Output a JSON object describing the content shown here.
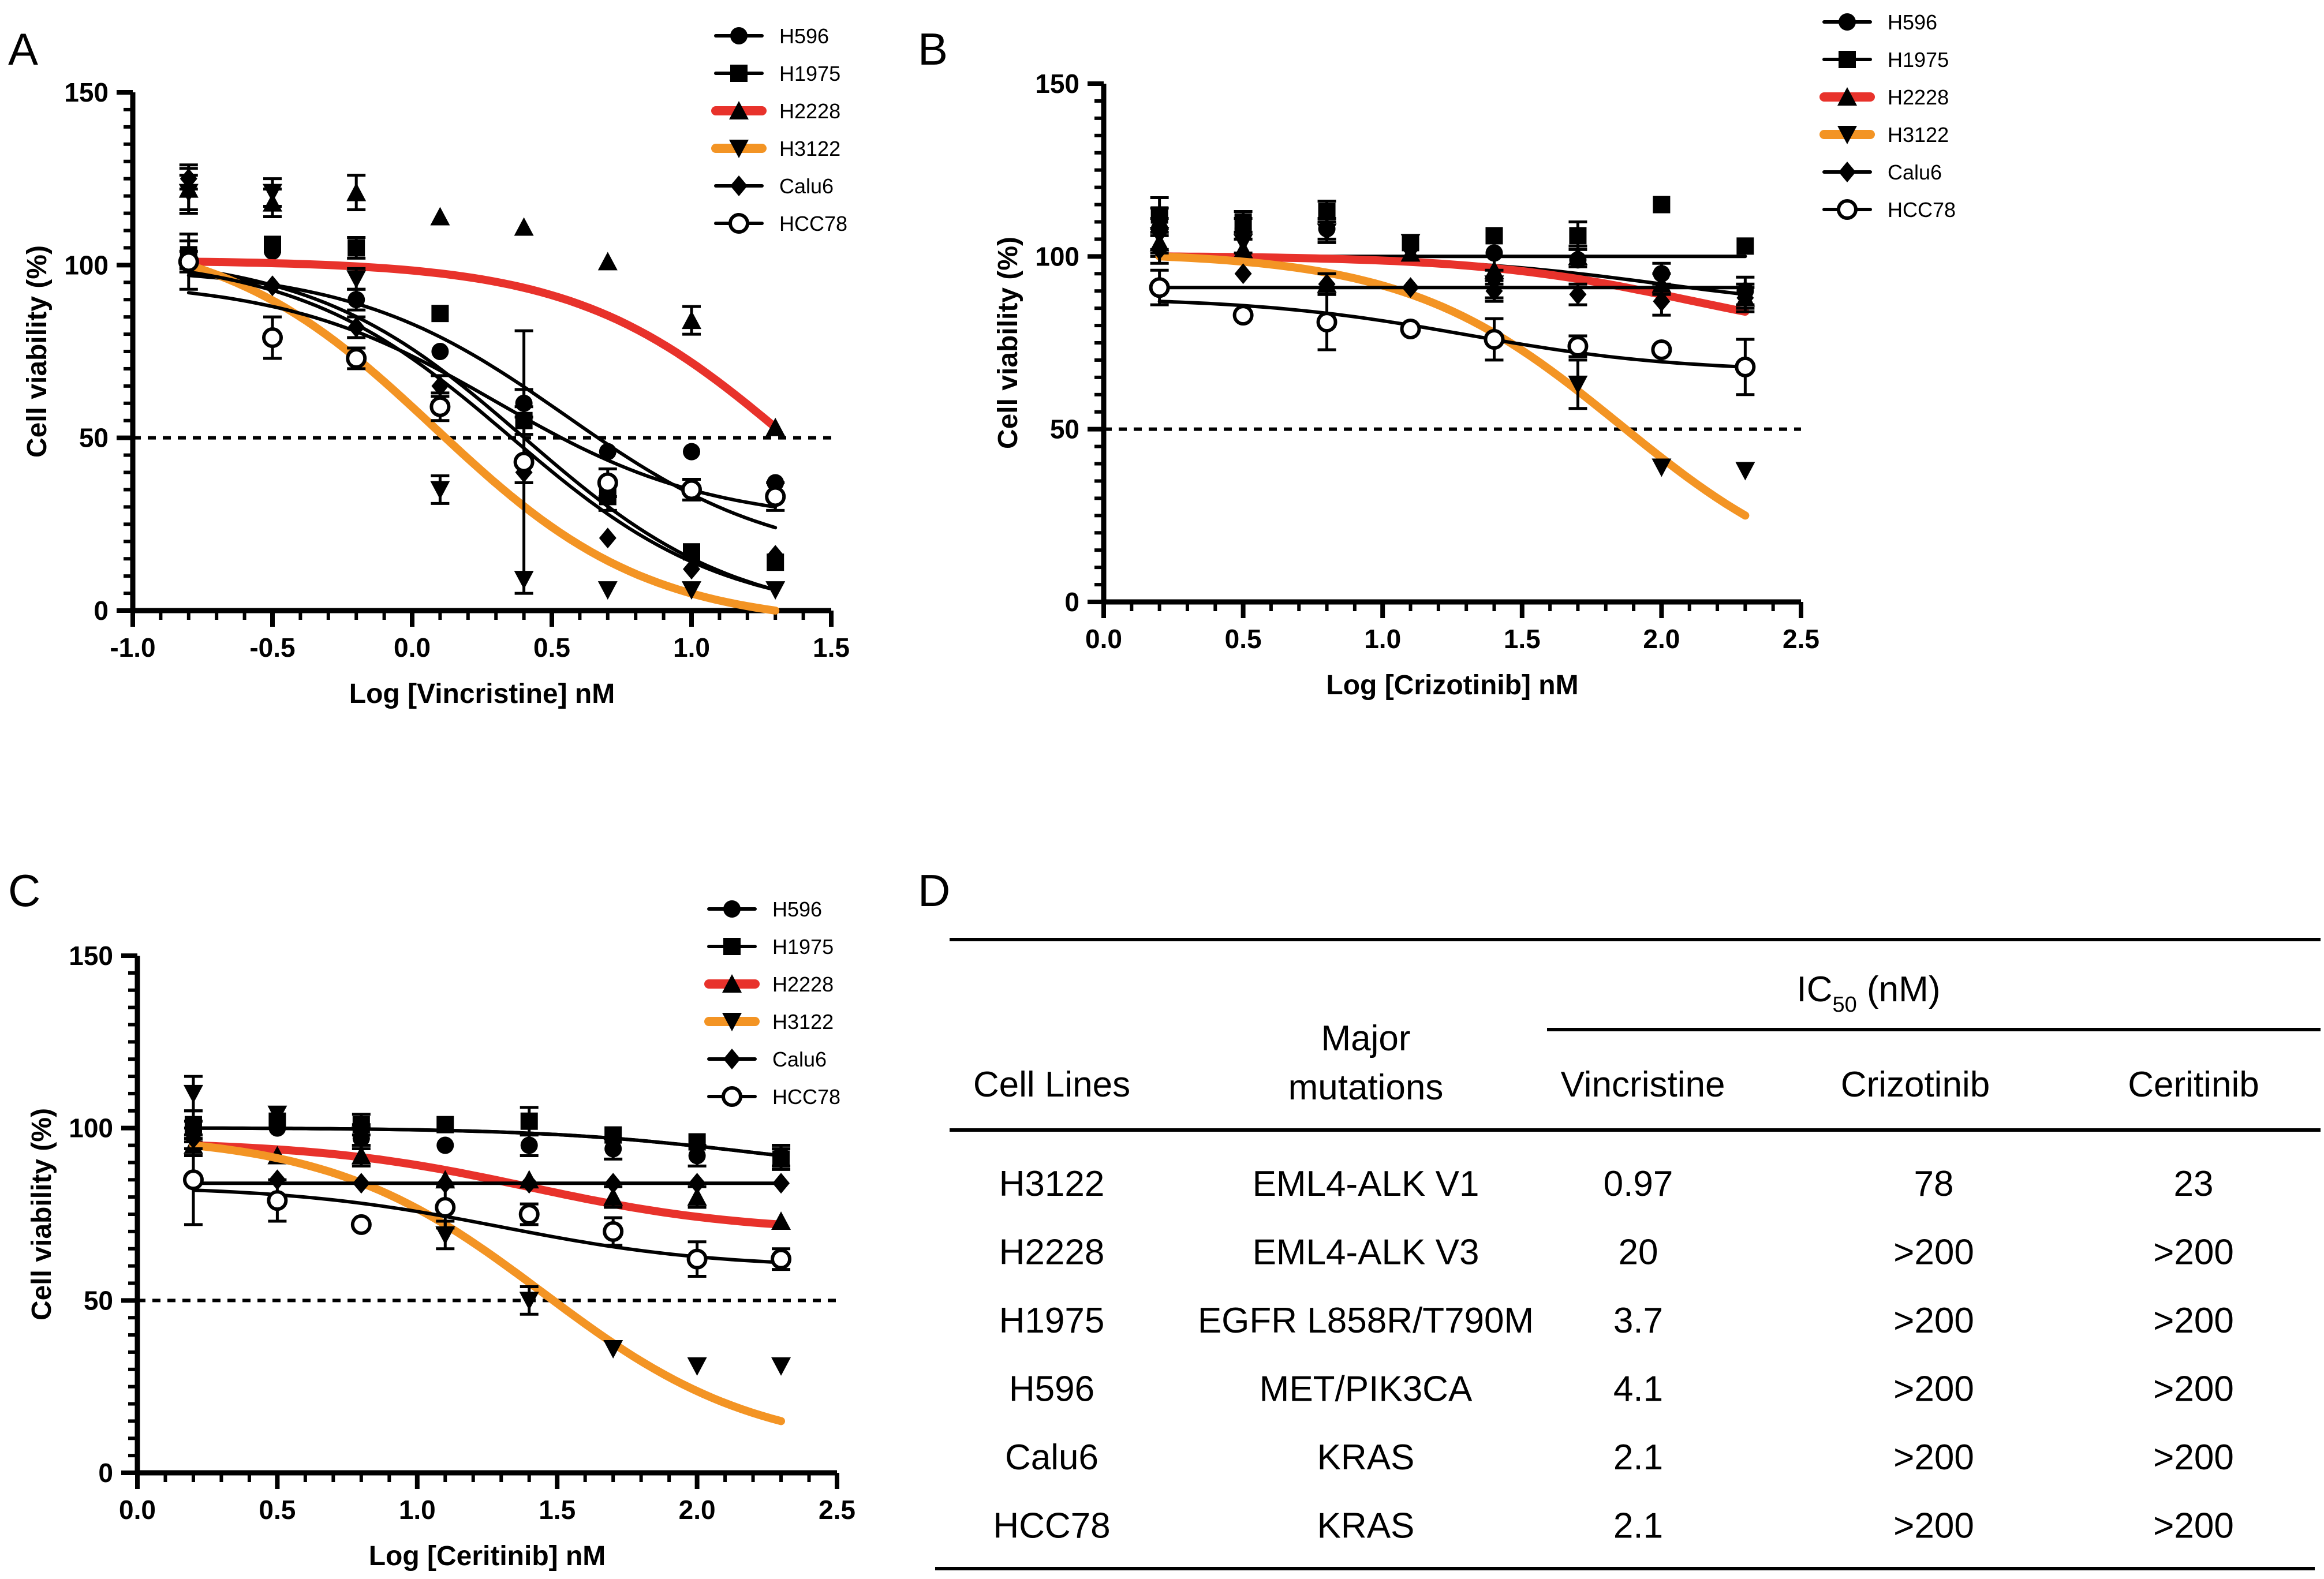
{
  "panel_labels": [
    "A",
    "B",
    "C",
    "D"
  ],
  "legend_labels": [
    "H596",
    "H1975",
    "H2228",
    "H3122",
    "Calu6",
    "HCC78"
  ],
  "colors": {
    "h2228": "#e8322b",
    "h3122": "#f39424",
    "black": "#000000"
  },
  "chart_data": [
    {
      "panel": "A",
      "type": "scatter",
      "xlabel": "Log [Vincristine] nM",
      "ylabel": "Cell viability (%)",
      "xlim": [
        -1.0,
        1.5
      ],
      "ylim": [
        0,
        150
      ],
      "xticks": [
        "-1.0",
        "-0.5",
        "0.0",
        "0.5",
        "1.0",
        "1.5"
      ],
      "yticks": [
        "0",
        "50",
        "100",
        "150"
      ],
      "reference_line": 50,
      "x": [
        -0.8,
        -0.5,
        -0.2,
        0.1,
        0.4,
        0.7,
        1.0,
        1.3
      ],
      "series": [
        {
          "name": "H596",
          "marker": "circle",
          "values": [
            101,
            104,
            90,
            75,
            60,
            46,
            46,
            37
          ],
          "err": [
            3,
            2,
            3,
            2,
            4,
            2,
            2,
            2
          ],
          "fit": [
            -0.8,
            97,
            1.3,
            24
          ]
        },
        {
          "name": "H1975",
          "marker": "square",
          "values": [
            103,
            106,
            105,
            86,
            55,
            33,
            17,
            14
          ],
          "err": [
            4,
            2,
            3,
            2,
            4,
            4,
            2,
            2
          ],
          "fit": [
            -0.8,
            99,
            1.3,
            6
          ]
        },
        {
          "name": "H2228",
          "marker": "triangle-up",
          "values": [
            122,
            118,
            121,
            114,
            111,
            101,
            84,
            53
          ],
          "err": [
            7,
            4,
            5,
            2,
            2,
            2,
            4,
            2
          ],
          "fit": [
            -0.8,
            101,
            1.3,
            53
          ]
        },
        {
          "name": "H3122",
          "marker": "triangle-down",
          "values": [
            121,
            121,
            96,
            35,
            9,
            6,
            6,
            6
          ],
          "err": [
            5,
            4,
            3,
            4,
            2,
            2,
            2,
            2
          ],
          "fit": [
            -0.8,
            100,
            1.3,
            0
          ]
        },
        {
          "name": "Calu6",
          "marker": "diamond",
          "values": [
            125,
            94,
            82,
            65,
            40,
            21,
            12,
            16
          ],
          "err": [
            3,
            2,
            3,
            3,
            3,
            2,
            2,
            2
          ],
          "fit": [
            -0.8,
            98,
            1.3,
            6
          ]
        },
        {
          "name": "HCC78",
          "marker": "circle-open",
          "values": [
            101,
            79,
            73,
            59,
            43,
            37,
            35,
            33
          ],
          "err": [
            8,
            6,
            3,
            4,
            38,
            4,
            3,
            4
          ],
          "fit": [
            -0.8,
            92,
            1.3,
            30
          ]
        }
      ]
    },
    {
      "panel": "B",
      "type": "scatter",
      "xlabel": "Log [Crizotinib] nM",
      "ylabel": "Cell viability (%)",
      "xlim": [
        0.0,
        2.5
      ],
      "ylim": [
        0,
        150
      ],
      "xticks": [
        "0.0",
        "0.5",
        "1.0",
        "1.5",
        "2.0",
        "2.5"
      ],
      "yticks": [
        "0",
        "50",
        "100",
        "150"
      ],
      "reference_line": 50,
      "x": [
        0.2,
        0.5,
        0.8,
        1.1,
        1.4,
        1.7,
        2.0,
        2.3
      ],
      "series": [
        {
          "name": "H596",
          "marker": "circle",
          "values": [
            108,
            108,
            108,
            103,
            101,
            99,
            95,
            90
          ],
          "err": [
            6,
            3,
            3,
            2,
            2,
            2,
            3,
            4
          ],
          "fit": [
            0.2,
            100,
            2.3,
            89
          ]
        },
        {
          "name": "H1975",
          "marker": "square",
          "values": [
            112,
            110,
            113,
            104,
            106,
            106,
            115,
            103
          ],
          "err": [
            5,
            3,
            3,
            2,
            2,
            4,
            2,
            2
          ],
          "fit": [
            0.2,
            100,
            2.3,
            100
          ]
        },
        {
          "name": "H2228",
          "marker": "triangle-up",
          "values": [
            104,
            102,
            92,
            101,
            96,
            100,
            92,
            88
          ],
          "err": [
            4,
            3,
            3,
            2,
            4,
            3,
            3,
            3
          ],
          "fit": [
            0.2,
            100,
            2.3,
            84
          ]
        },
        {
          "name": "H3122",
          "marker": "triangle-down",
          "values": [
            106,
            104,
            107,
            104,
            92,
            63,
            39,
            38
          ],
          "err": [
            5,
            3,
            3,
            2,
            4,
            7,
            2,
            2
          ],
          "fit": [
            0.2,
            100,
            2.3,
            25
          ]
        },
        {
          "name": "Calu6",
          "marker": "diamond",
          "values": [
            102,
            95,
            92,
            91,
            90,
            89,
            87,
            88
          ],
          "err": [
            4,
            2,
            3,
            2,
            3,
            3,
            4,
            4
          ],
          "fit": [
            0.2,
            91,
            2.3,
            91
          ]
        },
        {
          "name": "HCC78",
          "marker": "circle-open",
          "values": [
            91,
            83,
            81,
            79,
            76,
            74,
            73,
            68
          ],
          "err": [
            5,
            2,
            8,
            2,
            6,
            3,
            2,
            8
          ],
          "fit": [
            0.2,
            87,
            2.3,
            68
          ]
        }
      ]
    },
    {
      "panel": "C",
      "type": "scatter",
      "xlabel": "Log [Ceritinib] nM",
      "ylabel": "Cell viability (%)",
      "xlim": [
        0.0,
        2.5
      ],
      "ylim": [
        0,
        150
      ],
      "xticks": [
        "0.0",
        "0.5",
        "1.0",
        "1.5",
        "2.0",
        "2.5"
      ],
      "yticks": [
        "0",
        "50",
        "100",
        "150"
      ],
      "reference_line": 50,
      "x": [
        0.2,
        0.5,
        0.8,
        1.1,
        1.4,
        1.7,
        2.0,
        2.3
      ],
      "series": [
        {
          "name": "H596",
          "marker": "circle",
          "values": [
            99,
            100,
            97,
            95,
            95,
            94,
            92,
            92
          ],
          "err": [
            3,
            2,
            3,
            2,
            3,
            3,
            3,
            3
          ],
          "fit": [
            0.2,
            100,
            2.3,
            92
          ]
        },
        {
          "name": "H1975",
          "marker": "square",
          "values": [
            101,
            102,
            101,
            101,
            102,
            98,
            96,
            91
          ],
          "err": [
            4,
            2,
            3,
            2,
            4,
            2,
            2,
            3
          ],
          "fit": [
            0.2,
            100,
            2.3,
            92
          ]
        },
        {
          "name": "H2228",
          "marker": "triangle-up",
          "values": [
            95,
            92,
            92,
            85,
            85,
            80,
            80,
            73
          ],
          "err": [
            3,
            2,
            3,
            2,
            2,
            3,
            3,
            2
          ],
          "fit": [
            0.2,
            95,
            2.3,
            72
          ]
        },
        {
          "name": "H3122",
          "marker": "triangle-down",
          "values": [
            110,
            104,
            98,
            69,
            50,
            36,
            31,
            31
          ],
          "err": [
            5,
            2,
            3,
            4,
            4,
            2,
            2,
            2
          ],
          "fit": [
            0.2,
            95,
            2.3,
            15
          ]
        },
        {
          "name": "Calu6",
          "marker": "diamond",
          "values": [
            97,
            85,
            84,
            84,
            84,
            84,
            84,
            84
          ],
          "err": [
            3,
            2,
            2,
            2,
            2,
            2,
            2,
            2
          ],
          "fit": [
            0.2,
            84,
            2.3,
            84
          ]
        },
        {
          "name": "HCC78",
          "marker": "circle-open",
          "values": [
            85,
            79,
            72,
            77,
            75,
            70,
            62,
            62
          ],
          "err": [
            13,
            6,
            2,
            6,
            3,
            4,
            5,
            3
          ],
          "fit": [
            0.2,
            82,
            2.3,
            61
          ]
        }
      ]
    }
  ],
  "table": {
    "headers": {
      "cell_lines": "Cell Lines",
      "mutations_line1": "Major",
      "mutations_line2": "mutations",
      "ic50_main": "IC",
      "ic50_sub": "50",
      "ic50_unit": " (nM)",
      "vincristine": "Vincristine",
      "crizotinib": "Crizotinib",
      "ceritinib": "Ceritinib"
    },
    "rows": [
      {
        "line": "H3122",
        "mutation": "EML4-ALK V1",
        "vincristine": "0.97",
        "crizotinib": "78",
        "ceritinib": "23"
      },
      {
        "line": "H2228",
        "mutation": "EML4-ALK V3",
        "vincristine": "20",
        "crizotinib": ">200",
        "ceritinib": ">200"
      },
      {
        "line": "H1975",
        "mutation": "EGFR L858R/T790M",
        "vincristine": "3.7",
        "crizotinib": ">200",
        "ceritinib": ">200"
      },
      {
        "line": "H596",
        "mutation": "MET/PIK3CA",
        "vincristine": "4.1",
        "crizotinib": ">200",
        "ceritinib": ">200"
      },
      {
        "line": "Calu6",
        "mutation": "KRAS",
        "vincristine": "2.1",
        "crizotinib": ">200",
        "ceritinib": ">200"
      },
      {
        "line": "HCC78",
        "mutation": "KRAS",
        "vincristine": "2.1",
        "crizotinib": ">200",
        "ceritinib": ">200"
      }
    ]
  }
}
